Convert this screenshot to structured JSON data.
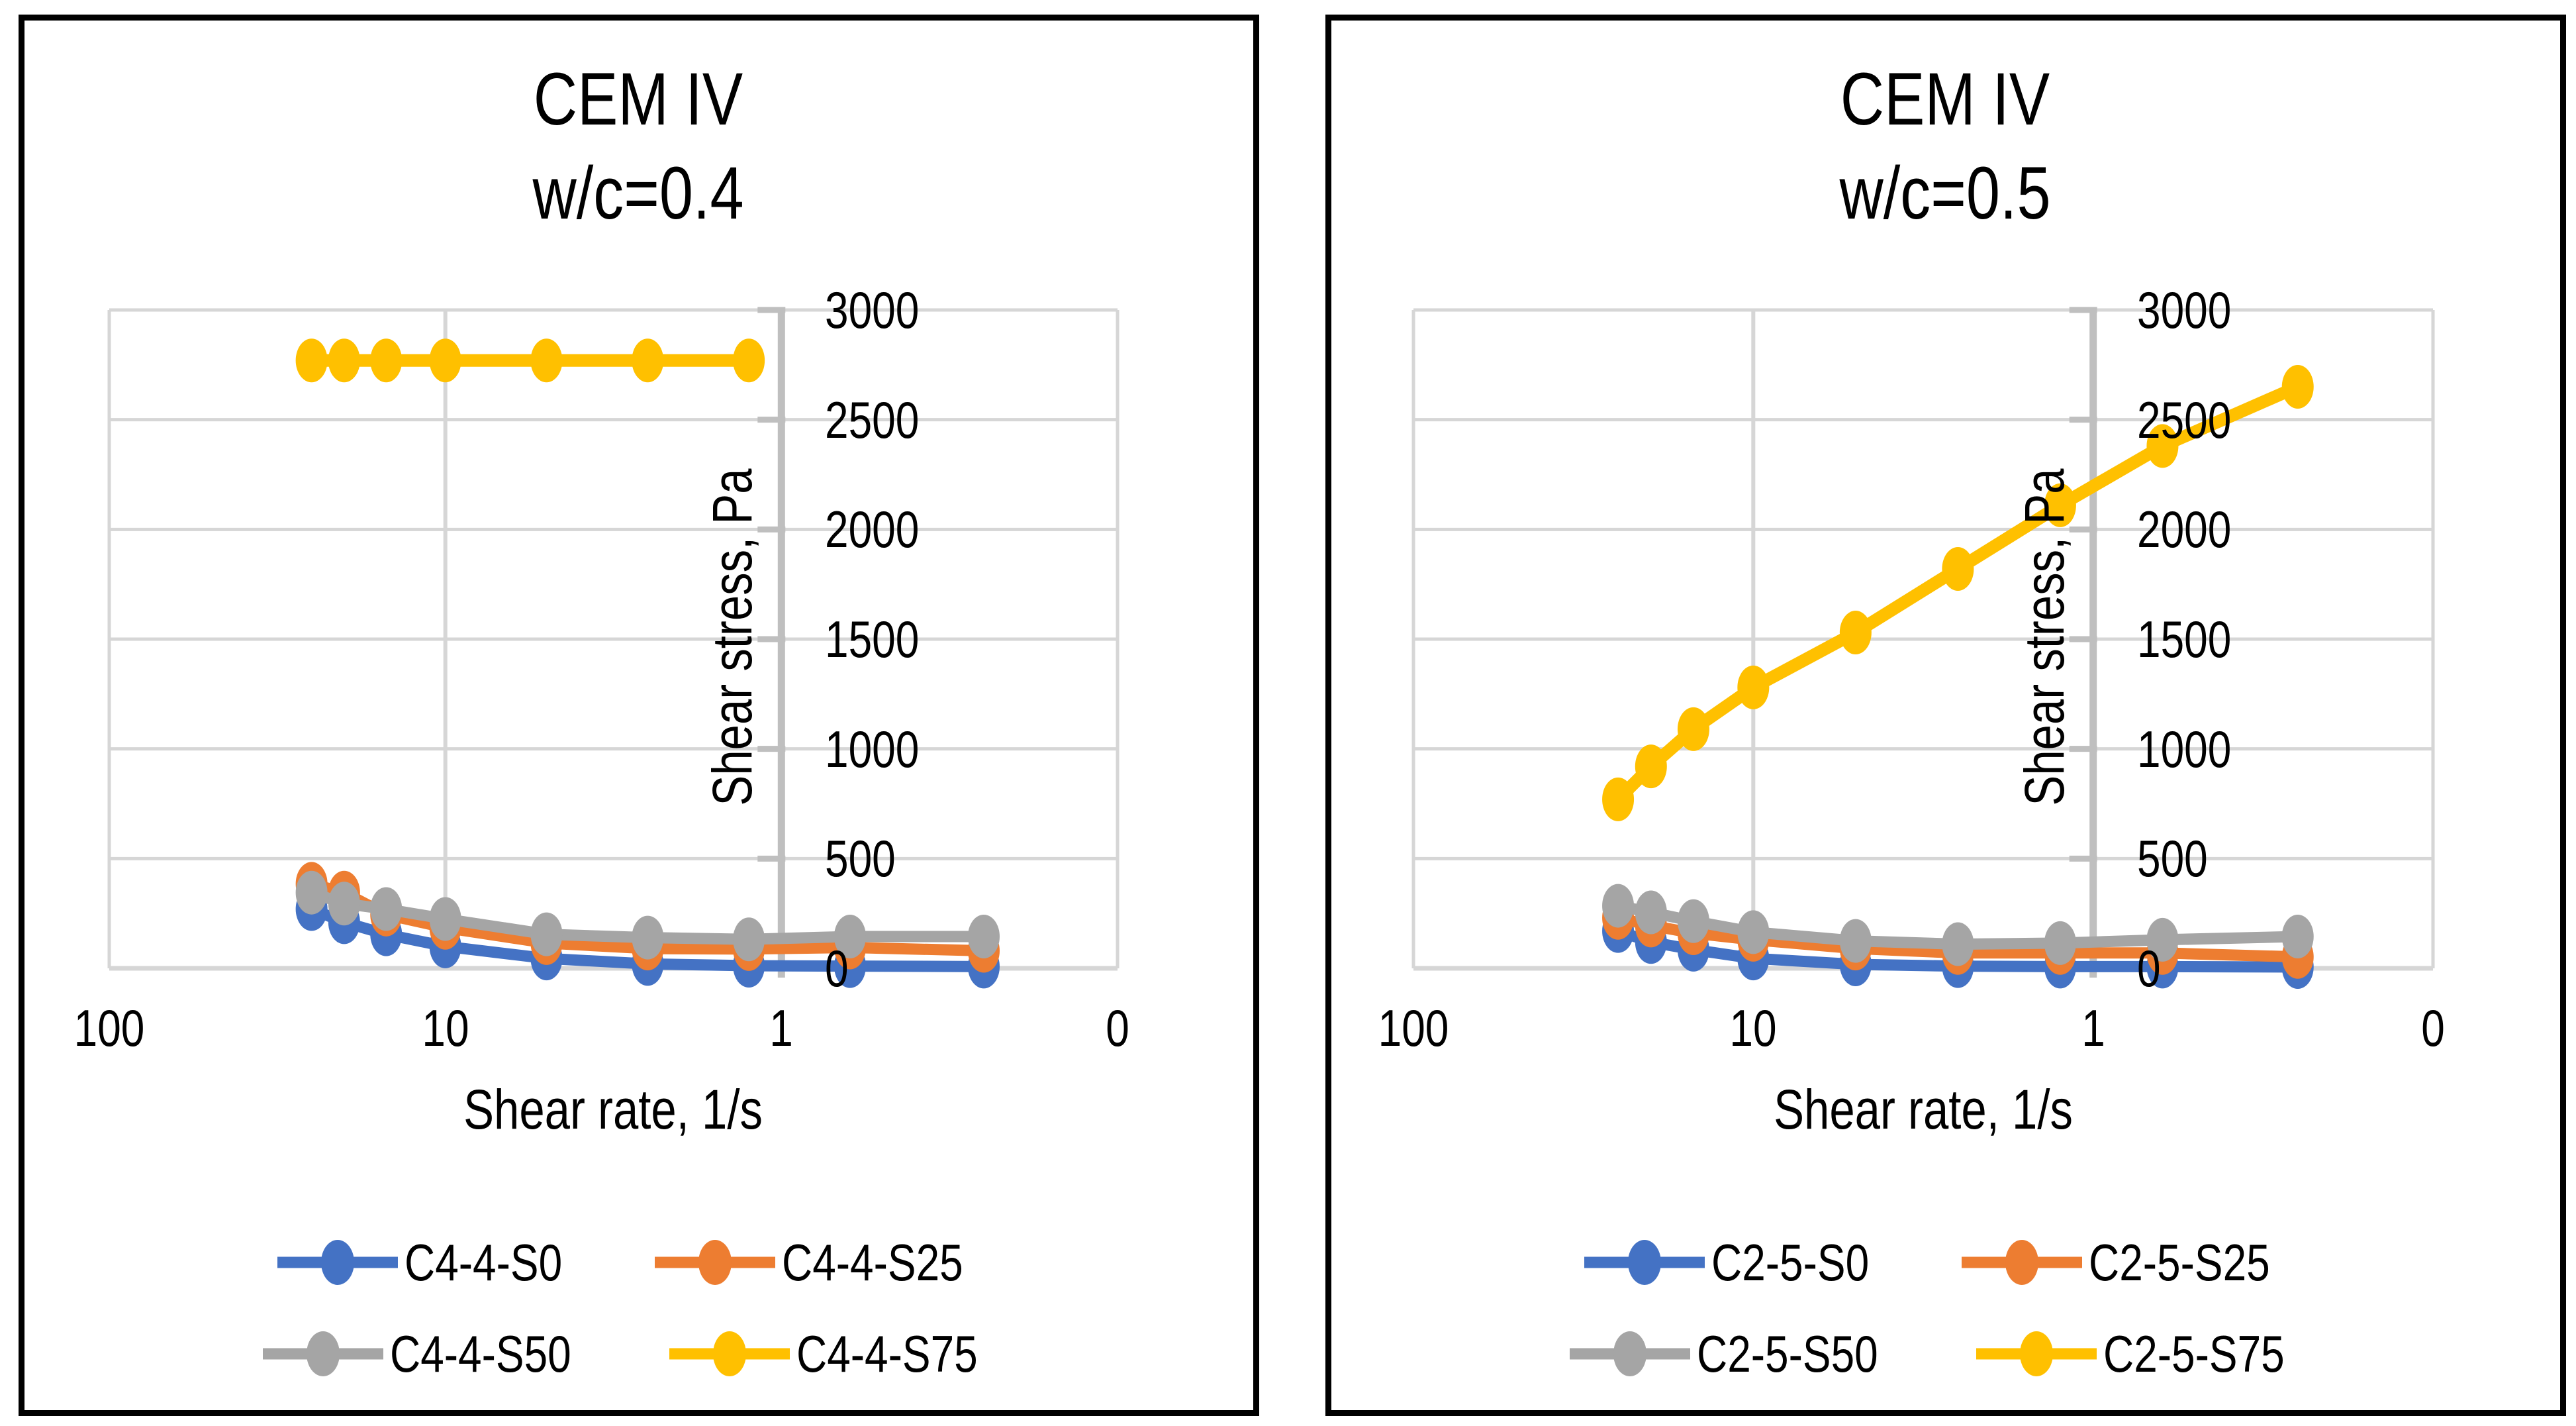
{
  "colors": {
    "blue": "#4472C4",
    "orange": "#ED7D31",
    "gray": "#A5A5A5",
    "yellow": "#FFC000",
    "gridline": "#D6D6D6",
    "axis_line": "#BFBFBF",
    "panel_border": "#000000",
    "text": "#000000"
  },
  "chart_data": [
    {
      "type": "line",
      "title": "CEM IV",
      "subtitle": "w/c=0.4",
      "xlabel": "Shear rate, 1/s",
      "ylabel": "Shear stress, Pa",
      "x_scale": "log-reversed",
      "grid": true,
      "legend_position": "bottom",
      "x_tick_labels": [
        "100",
        "10",
        "1",
        "0"
      ],
      "x_tick_values": [
        100,
        10,
        1,
        0.1
      ],
      "y_tick_labels": [
        "0",
        "500",
        "1000",
        "1500",
        "2000",
        "2500",
        "3000"
      ],
      "y_ticks": [
        0,
        500,
        1000,
        1500,
        2000,
        2500,
        3000
      ],
      "ylim": [
        0,
        3000
      ],
      "x": [
        25,
        20,
        15,
        10,
        5,
        2.5,
        1.25,
        0.625,
        0.25
      ],
      "series": [
        {
          "name": "C4-4-S0",
          "color_key": "blue",
          "values": [
            270,
            210,
            155,
            100,
            45,
            20,
            12,
            10,
            8
          ]
        },
        {
          "name": "C4-4-S25",
          "color_key": "orange",
          "values": [
            385,
            345,
            245,
            185,
            115,
            90,
            88,
            95,
            80
          ]
        },
        {
          "name": "C4-4-S50",
          "color_key": "gray",
          "values": [
            345,
            295,
            270,
            225,
            155,
            140,
            132,
            145,
            145
          ]
        },
        {
          "name": "C4-4-S75",
          "color_key": "yellow",
          "values": [
            2770,
            2770,
            2770,
            2770,
            2770,
            2770,
            2770,
            null,
            null
          ]
        }
      ],
      "legend_rows": [
        [
          "C4-4-S0",
          "C4-4-S25"
        ],
        [
          "C4-4-S50",
          "C4-4-S75"
        ]
      ]
    },
    {
      "type": "line",
      "title": "CEM IV",
      "subtitle": "w/c=0.5",
      "xlabel": "Shear rate, 1/s",
      "ylabel": "Shear stress, Pa",
      "x_scale": "log-reversed",
      "grid": true,
      "legend_position": "bottom",
      "x_tick_labels": [
        "100",
        "10",
        "1",
        "0"
      ],
      "x_tick_values": [
        100,
        10,
        1,
        0.1
      ],
      "y_tick_labels": [
        "0",
        "500",
        "1000",
        "1500",
        "2000",
        "2500",
        "3000"
      ],
      "y_ticks": [
        0,
        500,
        1000,
        1500,
        2000,
        2500,
        3000
      ],
      "ylim": [
        0,
        3000
      ],
      "x": [
        25,
        20,
        15,
        10,
        5,
        2.5,
        1.25,
        0.625,
        0.25
      ],
      "series": [
        {
          "name": "C2-5-S0",
          "color_key": "blue",
          "values": [
            170,
            120,
            85,
            45,
            18,
            10,
            8,
            8,
            6
          ]
        },
        {
          "name": "C2-5-S25",
          "color_key": "orange",
          "values": [
            230,
            195,
            160,
            130,
            90,
            70,
            70,
            70,
            52
          ]
        },
        {
          "name": "C2-5-S50",
          "color_key": "gray",
          "values": [
            285,
            255,
            215,
            165,
            125,
            110,
            115,
            130,
            145
          ]
        },
        {
          "name": "C2-5-S75",
          "color_key": "yellow",
          "values": [
            770,
            920,
            1090,
            1280,
            1530,
            1820,
            2110,
            2380,
            2650
          ]
        }
      ],
      "legend_rows": [
        [
          "C2-5-S0",
          "C2-5-S25"
        ],
        [
          "C2-5-S50",
          "C2-5-S75"
        ]
      ]
    }
  ]
}
